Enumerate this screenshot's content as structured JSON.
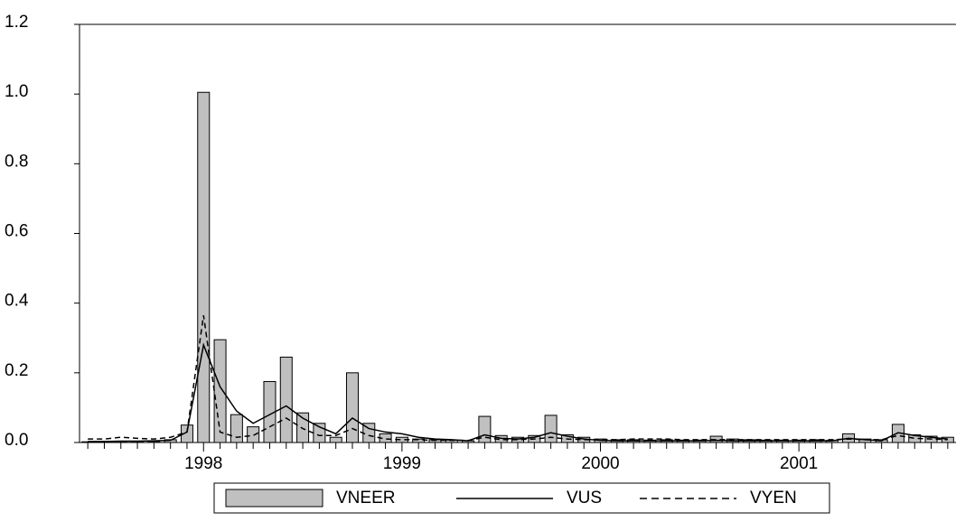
{
  "chart_data": {
    "type": "bar-line",
    "categories": [
      null,
      null,
      null,
      null,
      null,
      null,
      null,
      "1998",
      null,
      null,
      null,
      null,
      null,
      null,
      null,
      null,
      null,
      null,
      null,
      "1999",
      null,
      null,
      null,
      null,
      null,
      null,
      null,
      null,
      null,
      null,
      null,
      "2000",
      null,
      null,
      null,
      null,
      null,
      null,
      null,
      null,
      null,
      null,
      null,
      "2001",
      null,
      null,
      null,
      null,
      null,
      null,
      null,
      null,
      null
    ],
    "series": [
      {
        "name": "VNEER",
        "type": "bar",
        "color": "#c0c0c0",
        "values": [
          0.002,
          0.002,
          0.003,
          0.003,
          0.003,
          0.008,
          0.05,
          1.005,
          0.295,
          0.08,
          0.045,
          0.175,
          0.245,
          0.085,
          0.055,
          0.015,
          0.2,
          0.055,
          0.025,
          0.015,
          0.01,
          0.008,
          0.007,
          0.005,
          0.075,
          0.02,
          0.015,
          0.02,
          0.078,
          0.022,
          0.015,
          0.01,
          0.008,
          0.008,
          0.007,
          0.008,
          0.007,
          0.007,
          0.018,
          0.01,
          0.008,
          0.007,
          0.007,
          0.007,
          0.008,
          0.006,
          0.025,
          0.01,
          0.008,
          0.052,
          0.022,
          0.018,
          0.015
        ]
      },
      {
        "name": "VUS",
        "type": "line",
        "line_style": "solid",
        "color": "#000000",
        "values": [
          0.003,
          0.003,
          0.004,
          0.004,
          0.005,
          0.006,
          0.03,
          0.28,
          0.16,
          0.09,
          0.055,
          0.08,
          0.105,
          0.07,
          0.045,
          0.025,
          0.07,
          0.04,
          0.03,
          0.025,
          0.015,
          0.01,
          0.008,
          0.005,
          0.022,
          0.012,
          0.01,
          0.015,
          0.028,
          0.018,
          0.01,
          0.006,
          0.005,
          0.005,
          0.005,
          0.005,
          0.005,
          0.005,
          0.006,
          0.005,
          0.005,
          0.005,
          0.005,
          0.005,
          0.005,
          0.005,
          0.012,
          0.008,
          0.005,
          0.028,
          0.02,
          0.015,
          0.01
        ]
      },
      {
        "name": "VYEN",
        "type": "line",
        "line_style": "dashed",
        "color": "#000000",
        "values": [
          0.01,
          0.01,
          0.015,
          0.012,
          0.01,
          0.015,
          0.03,
          0.365,
          0.03,
          0.015,
          0.02,
          0.045,
          0.07,
          0.04,
          0.02,
          0.02,
          0.04,
          0.02,
          0.01,
          0.008,
          0.008,
          0.006,
          0.006,
          0.006,
          0.015,
          0.008,
          0.008,
          0.01,
          0.015,
          0.01,
          0.008,
          0.008,
          0.008,
          0.01,
          0.01,
          0.01,
          0.008,
          0.008,
          0.008,
          0.008,
          0.008,
          0.008,
          0.008,
          0.008,
          0.008,
          0.008,
          0.01,
          0.008,
          0.008,
          0.02,
          0.012,
          0.01,
          0.008
        ]
      }
    ],
    "ylim": [
      0,
      1.2
    ],
    "yticks": [
      {
        "value": 0,
        "label": "0.0"
      },
      0.2,
      0.4,
      0.6,
      0.8,
      {
        "value": 1,
        "label": "1.0"
      },
      1.2
    ],
    "legend": "bottom"
  }
}
